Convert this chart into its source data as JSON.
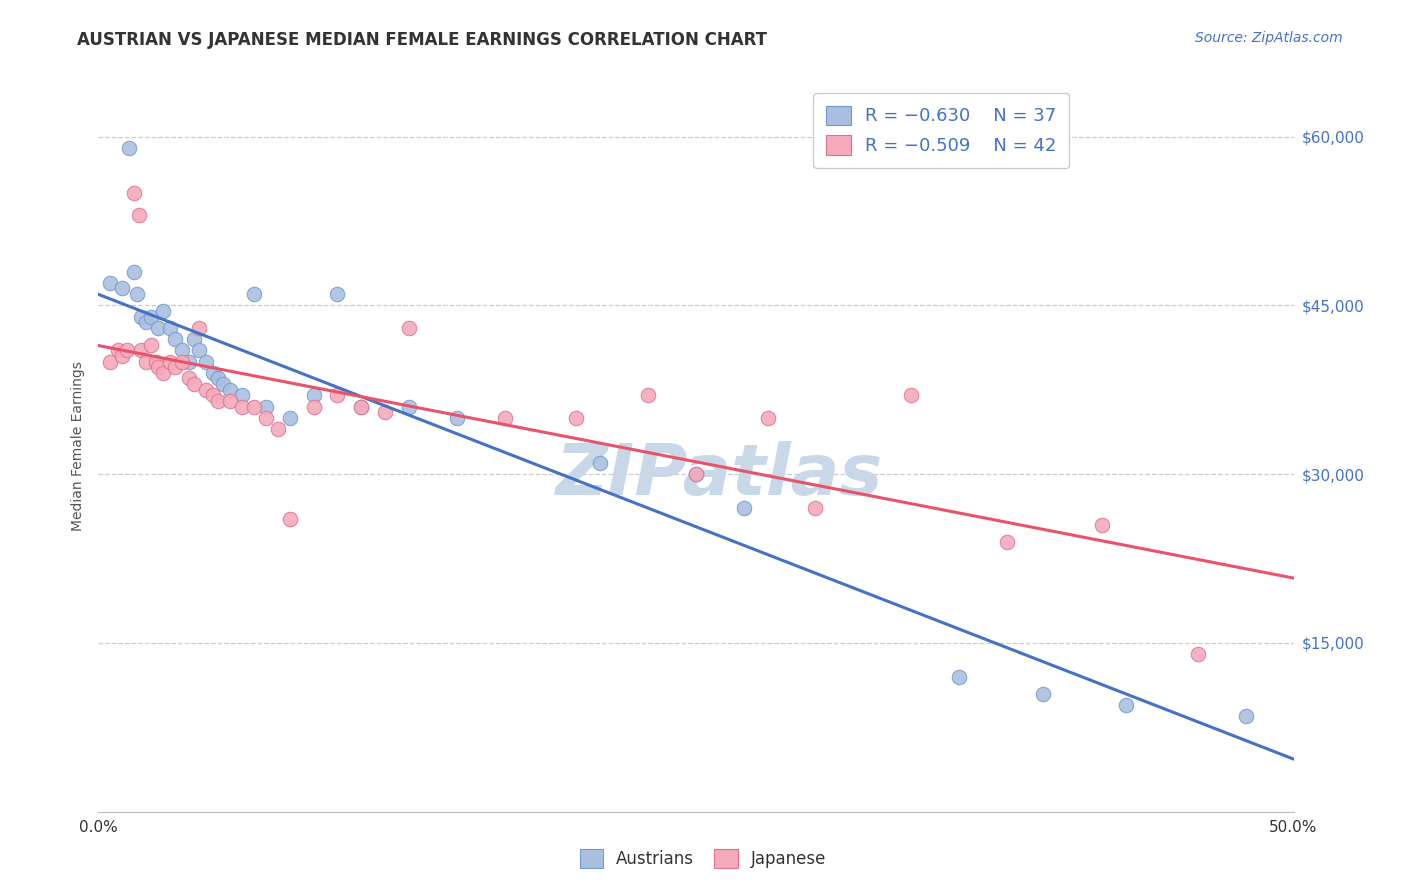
{
  "title": "AUSTRIAN VS JAPANESE MEDIAN FEMALE EARNINGS CORRELATION CHART",
  "source": "Source: ZipAtlas.com",
  "ylabel": "Median Female Earnings",
  "xlim": [
    0.0,
    0.5
  ],
  "ylim": [
    0,
    65000
  ],
  "xtick_positions": [
    0.0,
    0.1,
    0.2,
    0.3,
    0.4,
    0.5
  ],
  "xtick_labels": [
    "0.0%",
    "",
    "",
    "",
    "",
    "50.0%"
  ],
  "yticks_right": [
    15000,
    30000,
    45000,
    60000
  ],
  "ytick_labels_right": [
    "$15,000",
    "$30,000",
    "$45,000",
    "$60,000"
  ],
  "blue_line_color": "#4472C4",
  "pink_line_color": "#E8536A",
  "blue_scatter_face": "#AABFE0",
  "blue_scatter_edge": "#7099CC",
  "pink_scatter_face": "#F4AABB",
  "pink_scatter_edge": "#E07090",
  "legend_label_blue": "Austrians",
  "legend_label_pink": "Japanese",
  "watermark": "ZIPatlas",
  "watermark_color": "#C8D8E8",
  "watermark_fontsize": 52,
  "blue_scatter_x": [
    0.005,
    0.01,
    0.013,
    0.015,
    0.016,
    0.018,
    0.02,
    0.022,
    0.025,
    0.027,
    0.03,
    0.032,
    0.035,
    0.038,
    0.04,
    0.042,
    0.045,
    0.048,
    0.05,
    0.052,
    0.055,
    0.06,
    0.065,
    0.07,
    0.08,
    0.09,
    0.1,
    0.11,
    0.13,
    0.15,
    0.21,
    0.25,
    0.27,
    0.36,
    0.395,
    0.43,
    0.48
  ],
  "blue_scatter_y": [
    47000,
    46500,
    59000,
    48000,
    46000,
    44000,
    43500,
    44000,
    43000,
    44500,
    43000,
    42000,
    41000,
    40000,
    42000,
    41000,
    40000,
    39000,
    38500,
    38000,
    37500,
    37000,
    46000,
    36000,
    35000,
    37000,
    46000,
    36000,
    36000,
    35000,
    31000,
    30000,
    27000,
    12000,
    10500,
    9500,
    8500
  ],
  "pink_scatter_x": [
    0.005,
    0.008,
    0.01,
    0.012,
    0.015,
    0.017,
    0.018,
    0.02,
    0.022,
    0.024,
    0.025,
    0.027,
    0.03,
    0.032,
    0.035,
    0.038,
    0.04,
    0.042,
    0.045,
    0.048,
    0.05,
    0.055,
    0.06,
    0.065,
    0.07,
    0.075,
    0.08,
    0.09,
    0.1,
    0.11,
    0.12,
    0.13,
    0.17,
    0.2,
    0.23,
    0.25,
    0.28,
    0.3,
    0.34,
    0.38,
    0.42,
    0.46
  ],
  "pink_scatter_y": [
    40000,
    41000,
    40500,
    41000,
    55000,
    53000,
    41000,
    40000,
    41500,
    40000,
    39500,
    39000,
    40000,
    39500,
    40000,
    38500,
    38000,
    43000,
    37500,
    37000,
    36500,
    36500,
    36000,
    36000,
    35000,
    34000,
    26000,
    36000,
    37000,
    36000,
    35500,
    43000,
    35000,
    35000,
    37000,
    30000,
    35000,
    27000,
    37000,
    24000,
    25500,
    14000
  ],
  "title_fontsize": 12,
  "label_fontsize": 10,
  "tick_fontsize": 11,
  "source_fontsize": 10,
  "background_color": "#FFFFFF",
  "grid_color": "#CCCCCC",
  "axis_color": "#BBBBBB",
  "text_color": "#333333",
  "right_tick_color": "#4472C4"
}
